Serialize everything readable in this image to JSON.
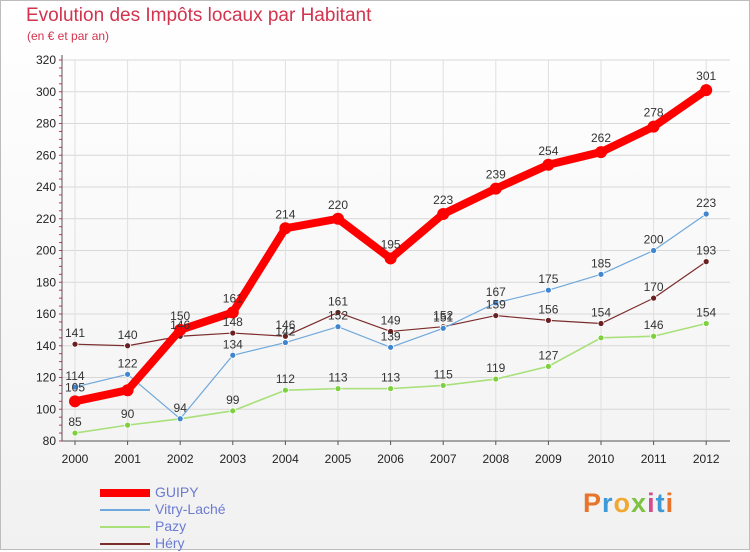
{
  "title": "Evolution des Impôts locaux par Habitant",
  "subtitle": "(en € et par an)",
  "logo": "Proxiti",
  "chart_data": {
    "type": "line",
    "x": [
      "2000",
      "2001",
      "2002",
      "2003",
      "2004",
      "2005",
      "2006",
      "2007",
      "2008",
      "2009",
      "2010",
      "2011",
      "2012"
    ],
    "ylim": [
      80,
      320
    ],
    "yticks": [
      80,
      100,
      120,
      140,
      160,
      180,
      200,
      220,
      240,
      260,
      280,
      300,
      320
    ],
    "grid": true,
    "legend": "bottom-left",
    "series": [
      {
        "name": "GUIPY",
        "color": "#ff0000",
        "values": [
          105,
          112,
          150,
          161,
          214,
          220,
          195,
          223,
          239,
          254,
          262,
          278,
          301
        ]
      },
      {
        "name": "Vitry-Laché",
        "color": "#5b9bd5",
        "values": [
          114,
          122,
          94,
          134,
          142,
          152,
          139,
          151,
          167,
          175,
          185,
          200,
          223
        ]
      },
      {
        "name": "Pazy",
        "color": "#99e066",
        "values": [
          85,
          90,
          94,
          99,
          112,
          113,
          113,
          115,
          119,
          127,
          145,
          146,
          154
        ]
      },
      {
        "name": "Héry",
        "color": "#7b2c2c",
        "values": [
          141,
          140,
          146,
          148,
          146,
          161,
          149,
          152,
          159,
          156,
          154,
          170,
          193
        ]
      }
    ],
    "data_labels": {
      "GUIPY": [
        "105",
        "",
        "150",
        "161",
        "214",
        "220",
        "195",
        "223",
        "239",
        "254",
        "262",
        "278",
        "301"
      ],
      "Vitry-Laché": [
        "114",
        "122",
        "94",
        "134",
        "142",
        "152",
        "139",
        "151",
        "167",
        "175",
        "185",
        "200",
        "223"
      ],
      "Pazy": [
        "85",
        "90",
        "",
        "99",
        "112",
        "113",
        "113",
        "115",
        "119",
        "127",
        "",
        "146",
        "154"
      ],
      "Héry": [
        "141",
        "140",
        "146",
        "148",
        "146",
        "161",
        "149",
        "152",
        "159",
        "156",
        "154",
        "170",
        "193"
      ]
    }
  }
}
